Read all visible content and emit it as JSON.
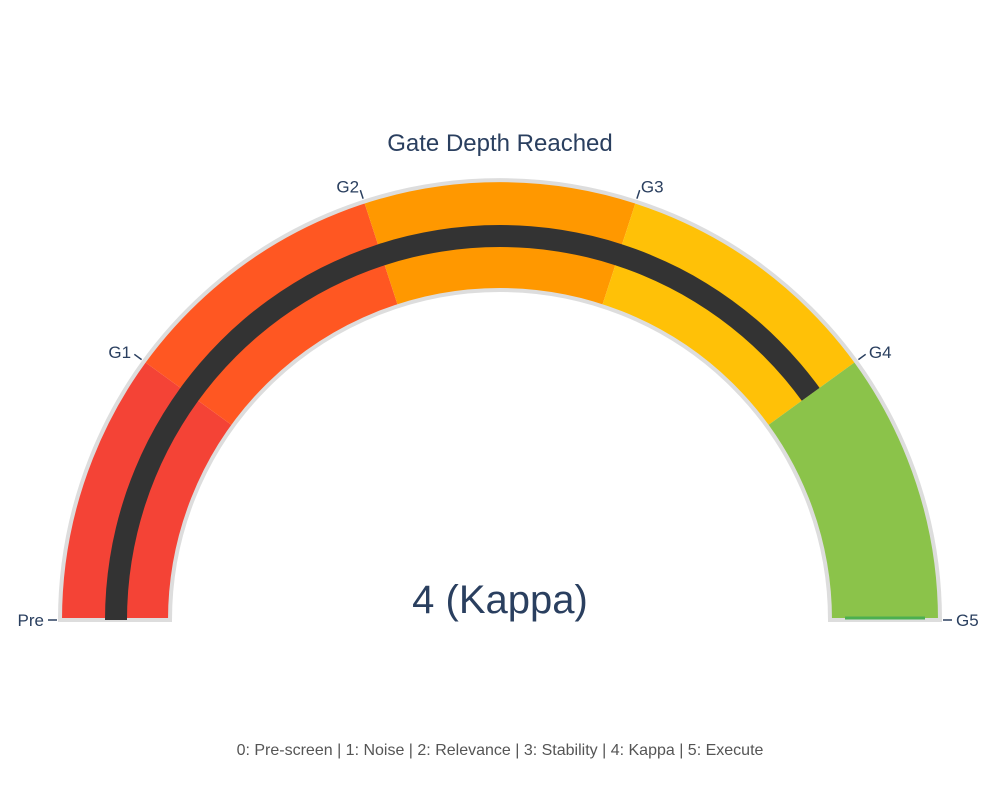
{
  "chart_data": {
    "type": "gauge",
    "title": "Gate Depth Reached",
    "value": 4,
    "value_text": "4 (Kappa)",
    "range": [
      0,
      5
    ],
    "tick_values": [
      0,
      1,
      2,
      3,
      4,
      5
    ],
    "tick_labels": [
      "Pre",
      "G1",
      "G2",
      "G3",
      "G4",
      "G5"
    ],
    "bar_color": "#333333",
    "border_color": "#dddddd",
    "steps": [
      {
        "range": [
          0,
          1
        ],
        "color": "#F44336"
      },
      {
        "range": [
          1,
          2
        ],
        "color": "#FF5722"
      },
      {
        "range": [
          2,
          3
        ],
        "color": "#FF9800"
      },
      {
        "range": [
          3,
          4
        ],
        "color": "#FFC107"
      },
      {
        "range": [
          4,
          5
        ],
        "color": "#8BC34A"
      }
    ],
    "threshold": {
      "value": 5,
      "color": "#4CAF50"
    },
    "caption": "0: Pre-screen | 1: Noise | 2: Relevance | 3: Stability | 4: Kappa | 5: Execute"
  }
}
